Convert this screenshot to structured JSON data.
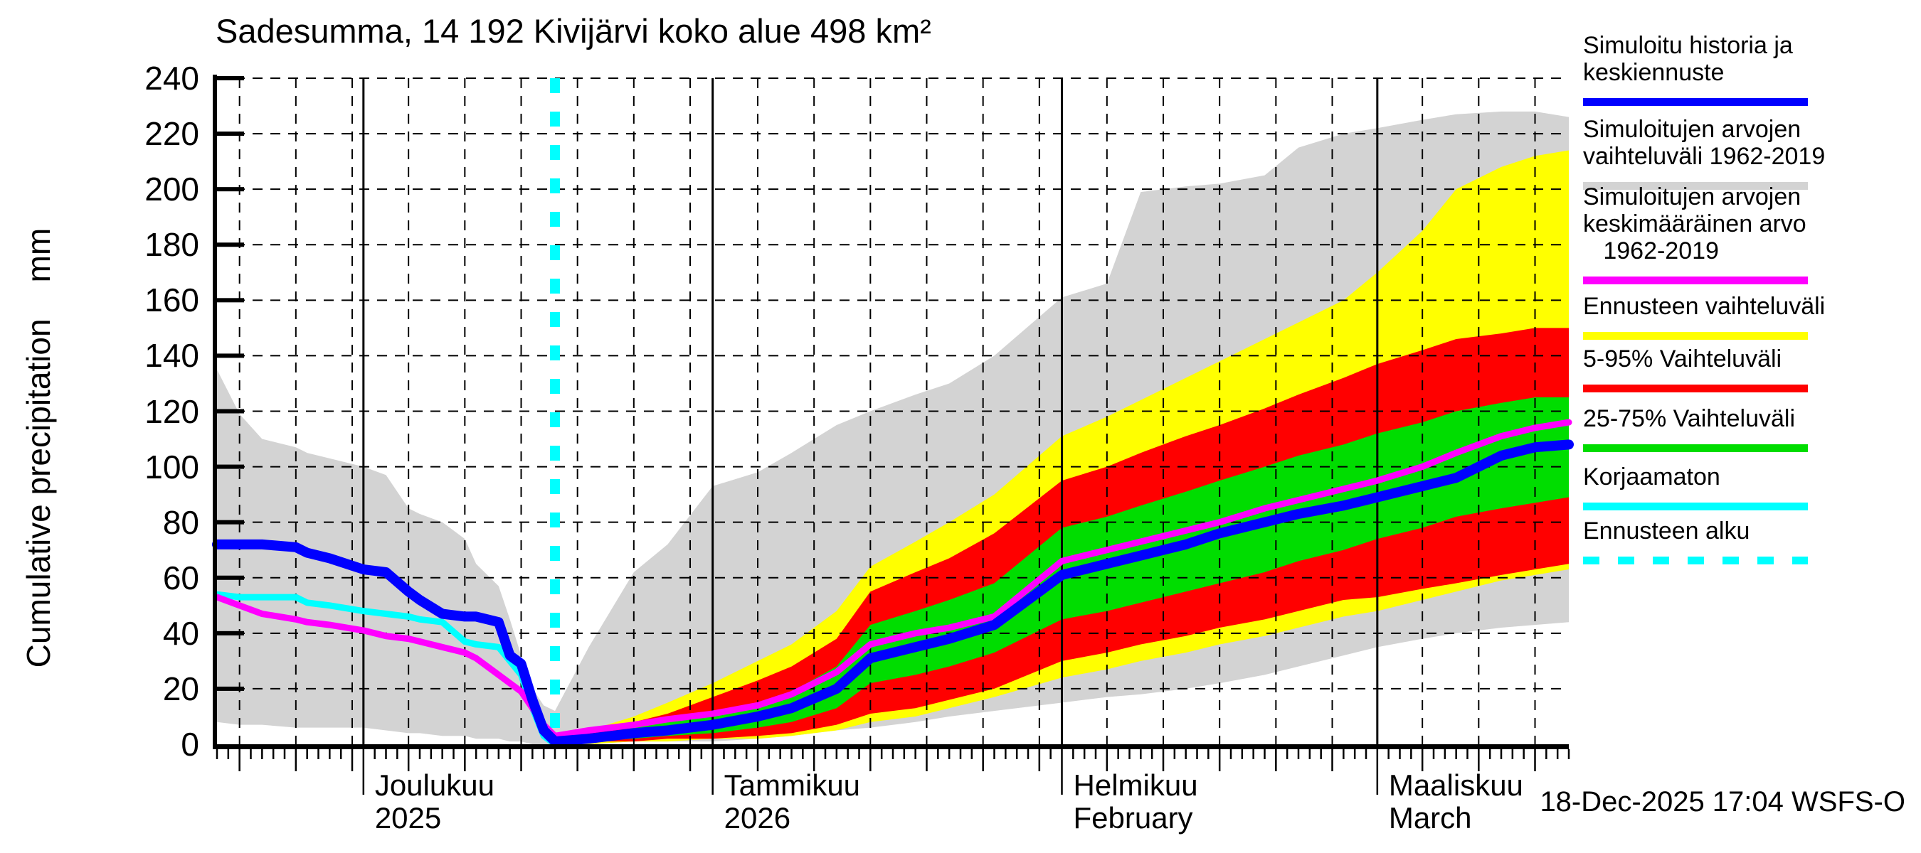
{
  "header": {
    "title": "Sadesumma, 14 192 Kivijärvi koko alue 498 km²"
  },
  "y_axis": {
    "label": "Cumulative precipitation",
    "unit": "mm",
    "min": 0,
    "max": 240,
    "step": 20
  },
  "x_axis": {
    "months": [
      {
        "label": "Joulukuu",
        "sub": "2025",
        "day": 13
      },
      {
        "label": "Tammikuu",
        "sub": "2026",
        "day": 44
      },
      {
        "label": "Helmikuu",
        "sub": "February",
        "day": 75
      },
      {
        "label": "Maaliskuu",
        "sub": "March",
        "day": 103
      }
    ]
  },
  "footer": {
    "timestamp": "18-Dec-2025 17:04 WSFS-O"
  },
  "colors": {
    "history_mean_forecast": "#0000ff",
    "simulated_range": "#d3d3d3",
    "climate_mean": "#ff00ff",
    "forecast_range": "#ffff00",
    "range_5_95": "#ff0000",
    "range_25_75": "#00dd00",
    "uncorrected": "#00ffff",
    "forecast_start": "#00ffff",
    "grid": "#000000"
  },
  "legend": {
    "entries": [
      {
        "name": "simulated-history-and-mean-forecast",
        "lines": "Simuloitu historia ja\nkeskiennuste",
        "color": "#0000ff",
        "dashed": false
      },
      {
        "name": "simulated-range-1962-2019",
        "lines": "Simuloitujen arvojen\nvaihteluväli 1962-2019",
        "color": "#d3d3d3",
        "dashed": false
      },
      {
        "name": "simulated-mean-1962-2019",
        "lines": "Simuloitujen arvojen\nkeskimääräinen arvo\n   1962-2019",
        "color": "#ff00ff",
        "dashed": false
      },
      {
        "name": "forecast-range",
        "lines": "Ennusteen vaihteluväli",
        "color": "#ffff00",
        "dashed": false
      },
      {
        "name": "range-5-95",
        "lines": "5-95% Vaihteluväli",
        "color": "#ff0000",
        "dashed": false
      },
      {
        "name": "range-25-75",
        "lines": "25-75% Vaihteluväli",
        "color": "#00dd00",
        "dashed": false
      },
      {
        "name": "uncorrected",
        "lines": "Korjaamaton",
        "color": "#00ffff",
        "dashed": false
      },
      {
        "name": "forecast-start",
        "lines": "Ennusteen alku",
        "color": "#00ffff",
        "dashed": true
      }
    ]
  },
  "chart_data": {
    "type": "line",
    "title": "Sadesumma, 14 192 Kivijärvi koko alue 498 km²",
    "xlabel": "",
    "ylabel": "Cumulative precipitation mm",
    "ylim": [
      0,
      240
    ],
    "ytick_step": 20,
    "grid": true,
    "legend_position": "right",
    "x_start_date": "2025-11-18",
    "x_end_date": "2026-03-18",
    "x_days_total": 120,
    "forecast_start_day": 30,
    "forecast_start_date": "2025-12-18",
    "month_line_days": [
      13,
      44,
      75,
      103
    ],
    "grid_days": [
      2,
      7,
      12,
      17,
      22,
      27,
      32,
      37,
      42,
      48,
      53,
      58,
      63,
      68,
      73,
      79,
      84,
      89,
      94,
      99,
      107,
      112,
      117
    ],
    "series": {
      "simulated_range_gray": {
        "label": "Simuloitujen arvojen vaihteluväli 1962-2019",
        "days": [
          0,
          2,
          4,
          7,
          8,
          10,
          13,
          15,
          17,
          18,
          20,
          22,
          23,
          25,
          26,
          27,
          28,
          29,
          30,
          33,
          37,
          40,
          44,
          48,
          51,
          55,
          58,
          62,
          65,
          69,
          75,
          79,
          82,
          86,
          89,
          93,
          96,
          100,
          103,
          107,
          110,
          114,
          117,
          120
        ],
        "top": [
          135,
          119,
          110,
          107,
          105,
          103,
          100,
          97,
          85,
          83,
          80,
          74,
          65,
          57,
          45,
          32,
          20,
          14,
          12,
          35,
          62,
          72,
          93,
          98,
          105,
          115,
          120,
          126,
          130,
          140,
          161,
          166,
          199,
          201,
          202,
          205,
          215,
          220,
          222,
          225,
          227,
          228,
          228,
          226
        ],
        "bottom": [
          8,
          7,
          7,
          6,
          6,
          6,
          6,
          5,
          4,
          4,
          3,
          3,
          2,
          2,
          1,
          1,
          0,
          0,
          0,
          0,
          1,
          1,
          1,
          2,
          3,
          5,
          6,
          8,
          10,
          12,
          15,
          17,
          18,
          20,
          22,
          25,
          28,
          32,
          35,
          38,
          40,
          42,
          43,
          44
        ]
      },
      "forecast_range_yellow": {
        "label": "Ennusteen vaihteluväli",
        "days": [
          30,
          33,
          37,
          40,
          44,
          48,
          51,
          55,
          58,
          62,
          65,
          69,
          75,
          79,
          82,
          86,
          89,
          93,
          96,
          100,
          103,
          107,
          110,
          114,
          117,
          120
        ],
        "top": [
          0,
          5,
          10,
          15,
          22,
          30,
          36,
          48,
          64,
          73,
          80,
          90,
          111,
          118,
          124,
          132,
          138,
          146,
          152,
          160,
          170,
          185,
          200,
          208,
          212,
          214
        ],
        "bottom": [
          0,
          0,
          1,
          1,
          2,
          2,
          3,
          5,
          8,
          10,
          13,
          17,
          24,
          27,
          30,
          33,
          36,
          39,
          42,
          46,
          48,
          52,
          55,
          59,
          61,
          63
        ]
      },
      "range_5_95_red": {
        "label": "5-95% Vaihteluväli",
        "days": [
          30,
          33,
          37,
          40,
          44,
          48,
          51,
          55,
          58,
          62,
          65,
          69,
          75,
          79,
          82,
          86,
          89,
          93,
          96,
          100,
          103,
          107,
          110,
          114,
          117,
          120
        ],
        "top": [
          0,
          4,
          8,
          11,
          17,
          23,
          28,
          38,
          55,
          62,
          67,
          76,
          95,
          100,
          105,
          111,
          115,
          121,
          126,
          132,
          137,
          142,
          146,
          148,
          150,
          150
        ],
        "bottom": [
          0,
          1,
          1,
          2,
          2,
          3,
          4,
          7,
          11,
          13,
          16,
          20,
          30,
          33,
          36,
          39,
          42,
          45,
          48,
          52,
          53,
          56,
          58,
          61,
          63,
          65
        ]
      },
      "range_25_75_green": {
        "label": "25-75% Vaihteluväli",
        "days": [
          30,
          33,
          37,
          40,
          44,
          48,
          51,
          55,
          58,
          62,
          65,
          69,
          75,
          79,
          82,
          86,
          89,
          93,
          96,
          100,
          103,
          107,
          110,
          114,
          117,
          120
        ],
        "top": [
          0,
          3,
          6,
          8,
          10,
          15,
          19,
          28,
          43,
          48,
          52,
          58,
          78,
          82,
          86,
          91,
          95,
          100,
          104,
          108,
          112,
          116,
          120,
          123,
          125,
          125
        ],
        "bottom": [
          0,
          1,
          2,
          3,
          4,
          6,
          8,
          13,
          22,
          25,
          28,
          33,
          45,
          48,
          51,
          55,
          58,
          62,
          66,
          70,
          74,
          78,
          82,
          85,
          87,
          89
        ]
      },
      "history_and_mean_forecast_blue": {
        "label": "Simuloitu historia ja keskiennuste",
        "days": [
          0,
          2,
          4,
          7,
          8,
          10,
          13,
          15,
          17,
          18,
          20,
          22,
          23,
          25,
          26,
          27,
          28,
          29,
          30,
          33,
          37,
          40,
          44,
          48,
          51,
          55,
          58,
          62,
          65,
          69,
          75,
          79,
          82,
          86,
          89,
          93,
          96,
          100,
          103,
          107,
          110,
          114,
          117,
          120
        ],
        "values": [
          72,
          72,
          72,
          71,
          69,
          67,
          63,
          62,
          55,
          52,
          47,
          46,
          46,
          44,
          32,
          29,
          16,
          5,
          1,
          2,
          4,
          5,
          7,
          10,
          13,
          20,
          31,
          35,
          38,
          43,
          61,
          65,
          68,
          72,
          76,
          80,
          83,
          86,
          89,
          93,
          96,
          104,
          107,
          108
        ]
      },
      "climate_mean_magenta": {
        "label": "Simuloitujen arvojen keskimääräinen arvo 1962-2019",
        "days": [
          0,
          2,
          4,
          7,
          8,
          10,
          13,
          15,
          17,
          18,
          20,
          22,
          23,
          25,
          26,
          27,
          28,
          29,
          30,
          33,
          37,
          40,
          44,
          48,
          51,
          55,
          58,
          62,
          65,
          69,
          75,
          79,
          82,
          86,
          89,
          93,
          96,
          100,
          103,
          107,
          110,
          114,
          117,
          120
        ],
        "values": [
          53,
          50,
          47,
          45,
          44,
          43,
          41,
          39,
          38,
          37,
          35,
          33,
          31,
          25,
          22,
          19,
          13,
          7,
          3,
          5,
          7,
          9,
          11,
          14,
          18,
          26,
          36,
          40,
          42,
          46,
          66,
          70,
          73,
          77,
          80,
          85,
          88,
          92,
          95,
          100,
          105,
          111,
          114,
          116
        ]
      },
      "uncorrected_cyan": {
        "label": "Korjaamaton",
        "days": [
          0,
          2,
          4,
          7,
          8,
          10,
          13,
          15,
          17,
          18,
          20,
          22,
          23,
          25,
          26,
          27,
          28,
          29,
          30
        ],
        "values": [
          54,
          53,
          53,
          53,
          51,
          50,
          48,
          47,
          46,
          45,
          44,
          37,
          36,
          35,
          30,
          25,
          13,
          3,
          0
        ]
      }
    }
  }
}
